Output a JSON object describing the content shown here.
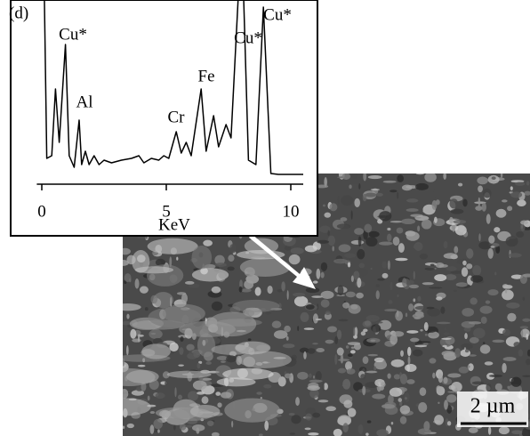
{
  "chart_data": {
    "type": "line",
    "panel_label": "(d)",
    "x_label": "KeV",
    "scale_bar": "2 µm",
    "annotations": [
      "Cu*",
      "Al",
      "Cr",
      "Fe",
      "Cu*",
      "Cu*"
    ],
    "xlim": [
      -0.2,
      10.5
    ],
    "xticks": [
      0,
      5,
      10
    ],
    "ylim": [
      0,
      100
    ],
    "color": "#000000",
    "x": [
      0.1,
      0.2,
      0.4,
      0.55,
      0.7,
      0.95,
      1.1,
      1.3,
      1.5,
      1.6,
      1.75,
      1.9,
      2.1,
      2.3,
      2.5,
      2.8,
      3.2,
      3.6,
      3.9,
      4.1,
      4.4,
      4.7,
      4.9,
      5.1,
      5.4,
      5.6,
      5.8,
      6.0,
      6.4,
      6.6,
      6.9,
      7.1,
      7.4,
      7.6,
      7.9,
      8.1,
      8.3,
      8.6,
      8.9,
      9.2,
      9.5,
      10.5
    ],
    "values": [
      108,
      14.5,
      16,
      53.5,
      23.5,
      78.5,
      16,
      9.5,
      36,
      11,
      18.5,
      11,
      16,
      11,
      13.5,
      12,
      13.5,
      14.5,
      16,
      12,
      14.5,
      13.5,
      16,
      14.5,
      29.5,
      17.5,
      23.5,
      16,
      53.5,
      18.5,
      38.5,
      21,
      33.5,
      26,
      108,
      108,
      13.5,
      11,
      99.5,
      6,
      5.5,
      5.5
    ]
  }
}
